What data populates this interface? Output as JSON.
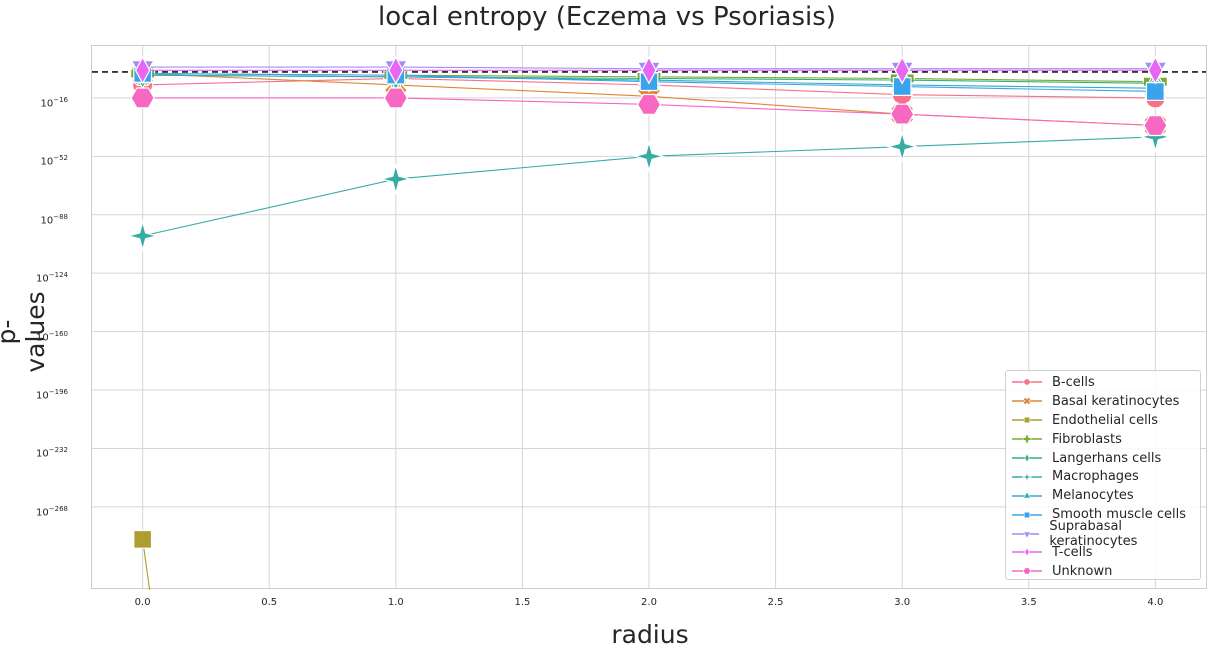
{
  "chart_data": {
    "type": "line",
    "title": "local entropy (Eczema vs Psoriasis)",
    "xlabel": "radius",
    "ylabel": "p-values",
    "x": [
      0.0,
      1.0,
      2.0,
      3.0,
      4.0
    ],
    "xticks": [
      "0.0",
      "0.5",
      "1.0",
      "1.5",
      "2.0",
      "2.5",
      "3.0",
      "3.5",
      "4.0"
    ],
    "xtick_values": [
      0.0,
      0.5,
      1.0,
      1.5,
      2.0,
      2.5,
      3.0,
      3.5,
      4.0
    ],
    "xlim": [
      -0.2,
      4.2
    ],
    "yscale": "log",
    "ytick_exponents": [
      -16,
      -52,
      -88,
      -124,
      -160,
      -196,
      -232,
      -268
    ],
    "ylim_log10": [
      -318,
      16
    ],
    "threshold_log10": 0,
    "threshold_style": "dashed black horizontal line",
    "grid": true,
    "legend_position": "bottom-right",
    "series": [
      {
        "name": "B-cells",
        "color": "#f77189",
        "marker": "circle",
        "log10_values": [
          -8,
          -4,
          -8,
          -14,
          -16
        ]
      },
      {
        "name": "Basal keratinocytes",
        "color": "#dc8932",
        "marker": "x",
        "log10_values": [
          -1,
          -8,
          -15,
          -26,
          -33
        ]
      },
      {
        "name": "Endothelial cells",
        "color": "#ae9d31",
        "marker": "square",
        "log10_values": [
          -288,
          null,
          null,
          null,
          null
        ]
      },
      {
        "name": "Fibroblasts",
        "color": "#77ab31",
        "marker": "plus",
        "log10_values": [
          -1,
          -2,
          -3,
          -4,
          -6
        ]
      },
      {
        "name": "Langerhans cells",
        "color": "#33b07a",
        "marker": "thin-diamond",
        "log10_values": [
          -2,
          -3,
          -4,
          -5,
          -7
        ]
      },
      {
        "name": "Macrophages",
        "color": "#36ada4",
        "marker": "star",
        "log10_values": [
          -101,
          -66,
          -52,
          -46,
          -40
        ]
      },
      {
        "name": "Melanocytes",
        "color": "#38a9c5",
        "marker": "triangle-up",
        "log10_values": [
          -2,
          -3,
          -5,
          -8,
          -10
        ]
      },
      {
        "name": "Smooth muscle cells",
        "color": "#3ba3ec",
        "marker": "square",
        "log10_values": [
          -1,
          -2,
          -6,
          -9,
          -12
        ]
      },
      {
        "name": "Suprabasal keratinocytes",
        "color": "#a48cf4",
        "marker": "triangle-down",
        "log10_values": [
          3,
          3,
          2,
          2,
          2
        ]
      },
      {
        "name": "T-cells",
        "color": "#e866f4",
        "marker": "thin-diamond",
        "log10_values": [
          1,
          1,
          1,
          1,
          1
        ]
      },
      {
        "name": "Unknown",
        "color": "#f668c2",
        "marker": "hexagon",
        "log10_values": [
          -16,
          -16,
          -20,
          -26,
          -33
        ]
      }
    ]
  }
}
